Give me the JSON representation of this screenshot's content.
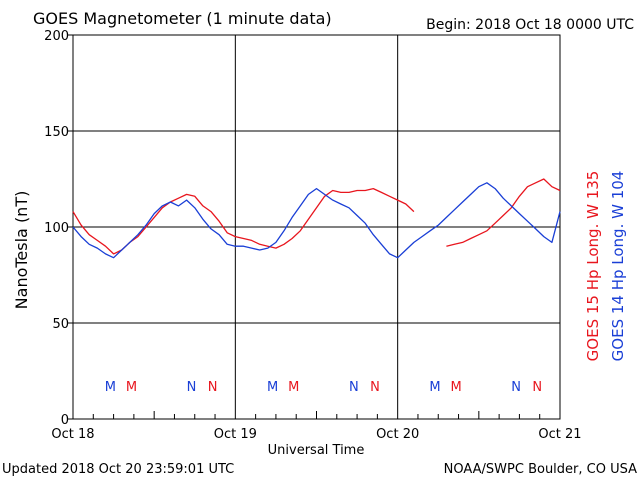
{
  "header": {
    "title": "GOES Magnetometer (1 minute data)",
    "begin": "Begin:  2018 Oct 18 0000 UTC"
  },
  "footer": {
    "updated": "Updated 2018 Oct 20 23:59:01 UTC",
    "source": "NOAA/SWPC Boulder, CO USA"
  },
  "colors": {
    "goes15": "#e8161e",
    "goes14": "#1a3fd6",
    "grid": "#000000"
  },
  "chart_data": {
    "type": "line",
    "title": "GOES Magnetometer (1 minute data)",
    "xlabel": "Universal Time",
    "ylabel": "NanoTesla (nT)",
    "xlim": [
      0,
      3
    ],
    "ylim": [
      0,
      200
    ],
    "grid": true,
    "x_tick_labels": [
      "Oct 18",
      "Oct 19",
      "Oct 20",
      "Oct 21"
    ],
    "y_ticks": [
      0,
      50,
      100,
      150,
      200
    ],
    "legend": [
      "GOES 15 Hp  Long. W 135",
      "GOES 14 Hp  Long. W 104"
    ],
    "legend_placement": "right (vertical)",
    "series": [
      {
        "name": "GOES 15 Hp  Long. W 135",
        "color": "#e8161e",
        "segments": [
          {
            "x": [
              0.0,
              0.05,
              0.1,
              0.15,
              0.2,
              0.25,
              0.3,
              0.35,
              0.4,
              0.45,
              0.5,
              0.55,
              0.6,
              0.65,
              0.7,
              0.75,
              0.8,
              0.85,
              0.9,
              0.95,
              1.0,
              1.05,
              1.1,
              1.15,
              1.2,
              1.25,
              1.3,
              1.35,
              1.4,
              1.45,
              1.5,
              1.55,
              1.6,
              1.65,
              1.7,
              1.75,
              1.8,
              1.85,
              1.9,
              1.95,
              2.0,
              2.05,
              2.1
            ],
            "y": [
              108,
              101,
              96,
              93,
              90,
              86,
              88,
              92,
              95,
              100,
              105,
              110,
              113,
              115,
              117,
              116,
              111,
              108,
              103,
              97,
              95,
              94,
              93,
              91,
              90,
              89,
              91,
              94,
              98,
              104,
              110,
              116,
              119,
              118,
              118,
              119,
              119,
              120,
              118,
              116,
              114,
              112,
              108
            ]
          },
          {
            "x": [
              2.3,
              2.35,
              2.4,
              2.45,
              2.5,
              2.55,
              2.6,
              2.65,
              2.7,
              2.75,
              2.8,
              2.85,
              2.9,
              2.95,
              3.0
            ],
            "y": [
              90,
              91,
              92,
              94,
              96,
              98,
              102,
              106,
              110,
              116,
              121,
              123,
              125,
              121,
              119
            ]
          }
        ]
      },
      {
        "name": "GOES 14 Hp  Long. W 104",
        "color": "#1a3fd6",
        "segments": [
          {
            "x": [
              0.0,
              0.05,
              0.1,
              0.15,
              0.2,
              0.25,
              0.3,
              0.35,
              0.4,
              0.45,
              0.5,
              0.55,
              0.6,
              0.65,
              0.7,
              0.75,
              0.8,
              0.85,
              0.9,
              0.95,
              1.0,
              1.05,
              1.1,
              1.15,
              1.2,
              1.25,
              1.3,
              1.35,
              1.4,
              1.45,
              1.5,
              1.55,
              1.6,
              1.65,
              1.7,
              1.75,
              1.8,
              1.85,
              1.9,
              1.95,
              2.0,
              2.05,
              2.1,
              2.15,
              2.2,
              2.25,
              2.3,
              2.35,
              2.4,
              2.45,
              2.5,
              2.55,
              2.6,
              2.65,
              2.7,
              2.75,
              2.8,
              2.85,
              2.9,
              2.95,
              3.0
            ],
            "y": [
              100,
              95,
              91,
              89,
              86,
              84,
              88,
              92,
              96,
              101,
              107,
              111,
              113,
              111,
              114,
              110,
              104,
              99,
              96,
              91,
              90,
              90,
              89,
              88,
              89,
              92,
              98,
              105,
              111,
              117,
              120,
              117,
              114,
              112,
              110,
              106,
              102,
              96,
              91,
              86,
              84,
              88,
              92,
              95,
              98,
              101,
              105,
              109,
              113,
              117,
              121,
              123,
              120,
              115,
              111,
              107,
              103,
              99,
              95,
              92,
              108
            ]
          }
        ]
      }
    ],
    "markers": [
      {
        "label": "M",
        "x": 0.23,
        "series": "GOES 14 Hp  Long. W 104"
      },
      {
        "label": "M",
        "x": 0.36,
        "series": "GOES 15 Hp  Long. W 135"
      },
      {
        "label": "N",
        "x": 0.73,
        "series": "GOES 14 Hp  Long. W 104"
      },
      {
        "label": "N",
        "x": 0.86,
        "series": "GOES 15 Hp  Long. W 135"
      },
      {
        "label": "M",
        "x": 1.23,
        "series": "GOES 14 Hp  Long. W 104"
      },
      {
        "label": "M",
        "x": 1.36,
        "series": "GOES 15 Hp  Long. W 135"
      },
      {
        "label": "N",
        "x": 1.73,
        "series": "GOES 14 Hp  Long. W 104"
      },
      {
        "label": "N",
        "x": 1.86,
        "series": "GOES 15 Hp  Long. W 135"
      },
      {
        "label": "M",
        "x": 2.23,
        "series": "GOES 14 Hp  Long. W 104"
      },
      {
        "label": "M",
        "x": 2.36,
        "series": "GOES 15 Hp  Long. W 135"
      },
      {
        "label": "N",
        "x": 2.73,
        "series": "GOES 14 Hp  Long. W 104"
      },
      {
        "label": "N",
        "x": 2.86,
        "series": "GOES 15 Hp  Long. W 135"
      }
    ]
  }
}
